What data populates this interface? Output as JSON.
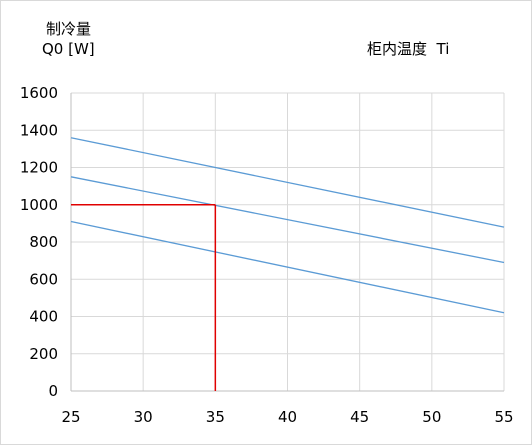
{
  "chart_data": {
    "type": "line",
    "title": "",
    "ylabel_line1": "制冷量",
    "ylabel_line2": "Q0 [W]",
    "xlabel": "柜内温度  Ti",
    "xlim": [
      25,
      55
    ],
    "ylim": [
      0,
      1600
    ],
    "x_ticks": [
      25,
      30,
      35,
      40,
      45,
      50,
      55
    ],
    "y_ticks": [
      0,
      200,
      400,
      600,
      800,
      1000,
      1200,
      1400,
      1600
    ],
    "grid": true,
    "series": [
      {
        "x": [
          25,
          55
        ],
        "y": [
          1360,
          880
        ],
        "color": "#5b9bd5"
      },
      {
        "x": [
          25,
          55
        ],
        "y": [
          1150,
          690
        ],
        "color": "#5b9bd5"
      },
      {
        "x": [
          25,
          55
        ],
        "y": [
          910,
          420
        ],
        "color": "#5b9bd5"
      }
    ],
    "reference": {
      "x": 35,
      "y": 1000,
      "color": "#e00000"
    },
    "grid_color": "#d9d9d9",
    "axis_color": "#bfbfbf"
  }
}
